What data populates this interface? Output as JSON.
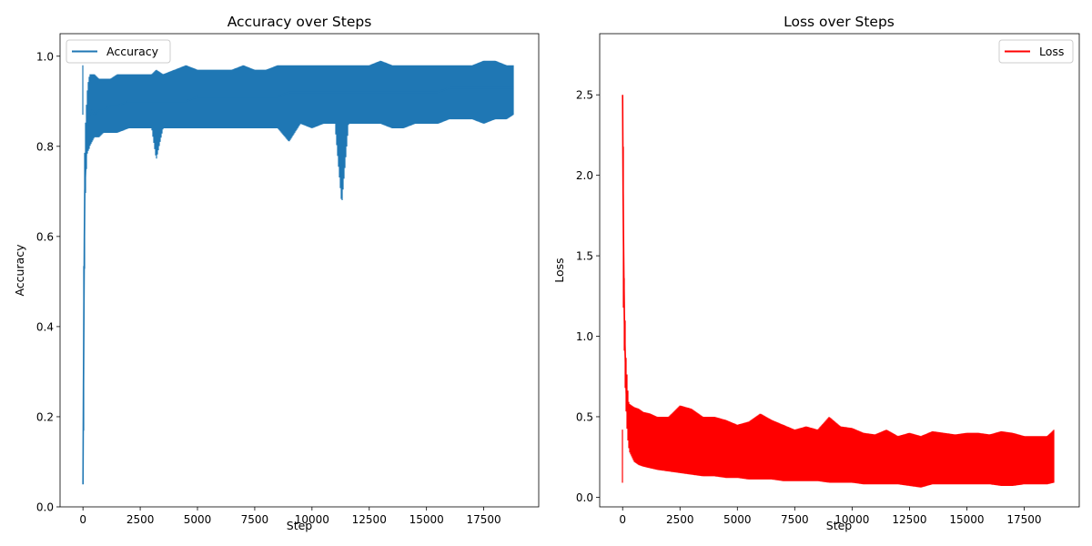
{
  "chart_data": [
    {
      "type": "line",
      "title": "Accuracy over Steps",
      "xlabel": "Step",
      "ylabel": "Accuracy",
      "xlim": [
        -1000,
        19900
      ],
      "ylim": [
        0.0,
        1.05
      ],
      "x_ticks": [
        0,
        2500,
        5000,
        7500,
        10000,
        12500,
        15000,
        17500
      ],
      "x_tick_labels": [
        "0",
        "2500",
        "5000",
        "7500",
        "10000",
        "12500",
        "15000",
        "17500"
      ],
      "y_ticks": [
        0.0,
        0.2,
        0.4,
        0.6,
        0.8,
        1.0
      ],
      "y_tick_labels": [
        "0.0",
        "0.2",
        "0.4",
        "0.6",
        "0.8",
        "1.0"
      ],
      "legend_position": "upper-left",
      "grid": false,
      "series": [
        {
          "name": "Accuracy",
          "color": "#1f77b4",
          "x": [
            0,
            20,
            40,
            60,
            80,
            100,
            130,
            160,
            200,
            250,
            300,
            400,
            500,
            700,
            900,
            1200,
            1500,
            2000,
            2500,
            3000,
            3200,
            3500,
            4000,
            4500,
            5000,
            5500,
            6000,
            6500,
            7000,
            7500,
            8000,
            8500,
            9000,
            9500,
            10000,
            10500,
            11000,
            11300,
            11600,
            12000,
            12500,
            13000,
            13500,
            14000,
            14500,
            15000,
            15500,
            16000,
            16500,
            17000,
            17500,
            18000,
            18500,
            18800
          ],
          "y": [
            0.05,
            0.27,
            0.42,
            0.6,
            0.7,
            0.73,
            0.76,
            0.8,
            0.84,
            0.86,
            0.87,
            0.88,
            0.87,
            0.88,
            0.88,
            0.89,
            0.89,
            0.9,
            0.9,
            0.9,
            0.9,
            0.9,
            0.9,
            0.9,
            0.91,
            0.91,
            0.91,
            0.91,
            0.91,
            0.91,
            0.91,
            0.91,
            0.92,
            0.92,
            0.92,
            0.92,
            0.92,
            0.92,
            0.92,
            0.92,
            0.92,
            0.92,
            0.92,
            0.92,
            0.92,
            0.92,
            0.92,
            0.93,
            0.93,
            0.93,
            0.93,
            0.93,
            0.93,
            0.93
          ],
          "y_band_low": [
            0.05,
            0.13,
            0.19,
            0.4,
            0.6,
            0.68,
            0.72,
            0.76,
            0.79,
            0.79,
            0.8,
            0.81,
            0.82,
            0.82,
            0.83,
            0.83,
            0.83,
            0.84,
            0.84,
            0.84,
            0.77,
            0.84,
            0.84,
            0.84,
            0.84,
            0.84,
            0.84,
            0.84,
            0.84,
            0.84,
            0.84,
            0.84,
            0.81,
            0.85,
            0.84,
            0.85,
            0.85,
            0.67,
            0.85,
            0.85,
            0.85,
            0.85,
            0.84,
            0.84,
            0.85,
            0.85,
            0.85,
            0.86,
            0.86,
            0.86,
            0.85,
            0.86,
            0.86,
            0.87
          ],
          "y_band_high": [
            0.05,
            0.41,
            0.6,
            0.76,
            0.8,
            0.84,
            0.87,
            0.9,
            0.93,
            0.95,
            0.96,
            0.96,
            0.96,
            0.95,
            0.95,
            0.95,
            0.96,
            0.96,
            0.96,
            0.96,
            0.97,
            0.96,
            0.97,
            0.98,
            0.97,
            0.97,
            0.97,
            0.97,
            0.98,
            0.97,
            0.97,
            0.98,
            0.98,
            0.98,
            0.98,
            0.98,
            0.98,
            0.98,
            0.98,
            0.98,
            0.98,
            0.99,
            0.98,
            0.98,
            0.98,
            0.98,
            0.98,
            0.98,
            0.98,
            0.98,
            0.99,
            0.99,
            0.98,
            0.98
          ]
        }
      ]
    },
    {
      "type": "line",
      "title": "Loss over Steps",
      "xlabel": "Step",
      "ylabel": "Loss",
      "xlim": [
        -1000,
        19900
      ],
      "ylim": [
        -0.06,
        2.88
      ],
      "x_ticks": [
        0,
        2500,
        5000,
        7500,
        10000,
        12500,
        15000,
        17500
      ],
      "x_tick_labels": [
        "0",
        "2500",
        "5000",
        "7500",
        "10000",
        "12500",
        "15000",
        "17500"
      ],
      "y_ticks": [
        0.0,
        0.5,
        1.0,
        1.5,
        2.0,
        2.5
      ],
      "y_tick_labels": [
        "0.0",
        "0.5",
        "1.0",
        "1.5",
        "2.0",
        "2.5"
      ],
      "legend_position": "upper-right",
      "grid": false,
      "series": [
        {
          "name": "Loss",
          "color": "#ff0000",
          "x": [
            0,
            20,
            40,
            60,
            80,
            100,
            130,
            160,
            200,
            250,
            300,
            400,
            500,
            700,
            900,
            1200,
            1500,
            2000,
            2500,
            3000,
            3500,
            4000,
            4500,
            5000,
            5500,
            6000,
            6500,
            7000,
            7500,
            8000,
            8500,
            9000,
            9500,
            10000,
            10500,
            11000,
            11500,
            12000,
            12500,
            13000,
            13500,
            14000,
            14500,
            15000,
            15500,
            16000,
            16500,
            17000,
            17500,
            18000,
            18500,
            18800
          ],
          "y": [
            2.5,
            1.9,
            1.6,
            1.3,
            1.1,
            0.95,
            0.8,
            0.65,
            0.52,
            0.45,
            0.4,
            0.36,
            0.35,
            0.34,
            0.33,
            0.32,
            0.31,
            0.3,
            0.3,
            0.3,
            0.29,
            0.28,
            0.28,
            0.27,
            0.27,
            0.27,
            0.26,
            0.26,
            0.25,
            0.25,
            0.25,
            0.24,
            0.24,
            0.23,
            0.23,
            0.22,
            0.22,
            0.22,
            0.22,
            0.22,
            0.21,
            0.21,
            0.21,
            0.21,
            0.21,
            0.2,
            0.2,
            0.2,
            0.2,
            0.2,
            0.2,
            0.2
          ],
          "y_band_low": [
            2.2,
            1.4,
            1.0,
            0.98,
            0.85,
            0.72,
            0.6,
            0.5,
            0.4,
            0.32,
            0.28,
            0.25,
            0.22,
            0.2,
            0.19,
            0.18,
            0.17,
            0.16,
            0.15,
            0.14,
            0.13,
            0.13,
            0.12,
            0.12,
            0.11,
            0.11,
            0.11,
            0.1,
            0.1,
            0.1,
            0.1,
            0.09,
            0.09,
            0.09,
            0.08,
            0.08,
            0.08,
            0.08,
            0.07,
            0.06,
            0.08,
            0.08,
            0.08,
            0.08,
            0.08,
            0.08,
            0.07,
            0.07,
            0.08,
            0.08,
            0.08,
            0.09
          ],
          "y_band_high": [
            2.75,
            2.4,
            2.0,
            1.55,
            1.2,
            1.15,
            1.0,
            0.8,
            0.75,
            0.6,
            0.58,
            0.57,
            0.56,
            0.55,
            0.53,
            0.52,
            0.5,
            0.5,
            0.57,
            0.55,
            0.5,
            0.5,
            0.48,
            0.45,
            0.47,
            0.52,
            0.48,
            0.45,
            0.42,
            0.44,
            0.42,
            0.5,
            0.44,
            0.43,
            0.4,
            0.39,
            0.42,
            0.38,
            0.4,
            0.38,
            0.41,
            0.4,
            0.39,
            0.4,
            0.4,
            0.39,
            0.41,
            0.4,
            0.38,
            0.38,
            0.38,
            0.42
          ]
        }
      ]
    }
  ]
}
